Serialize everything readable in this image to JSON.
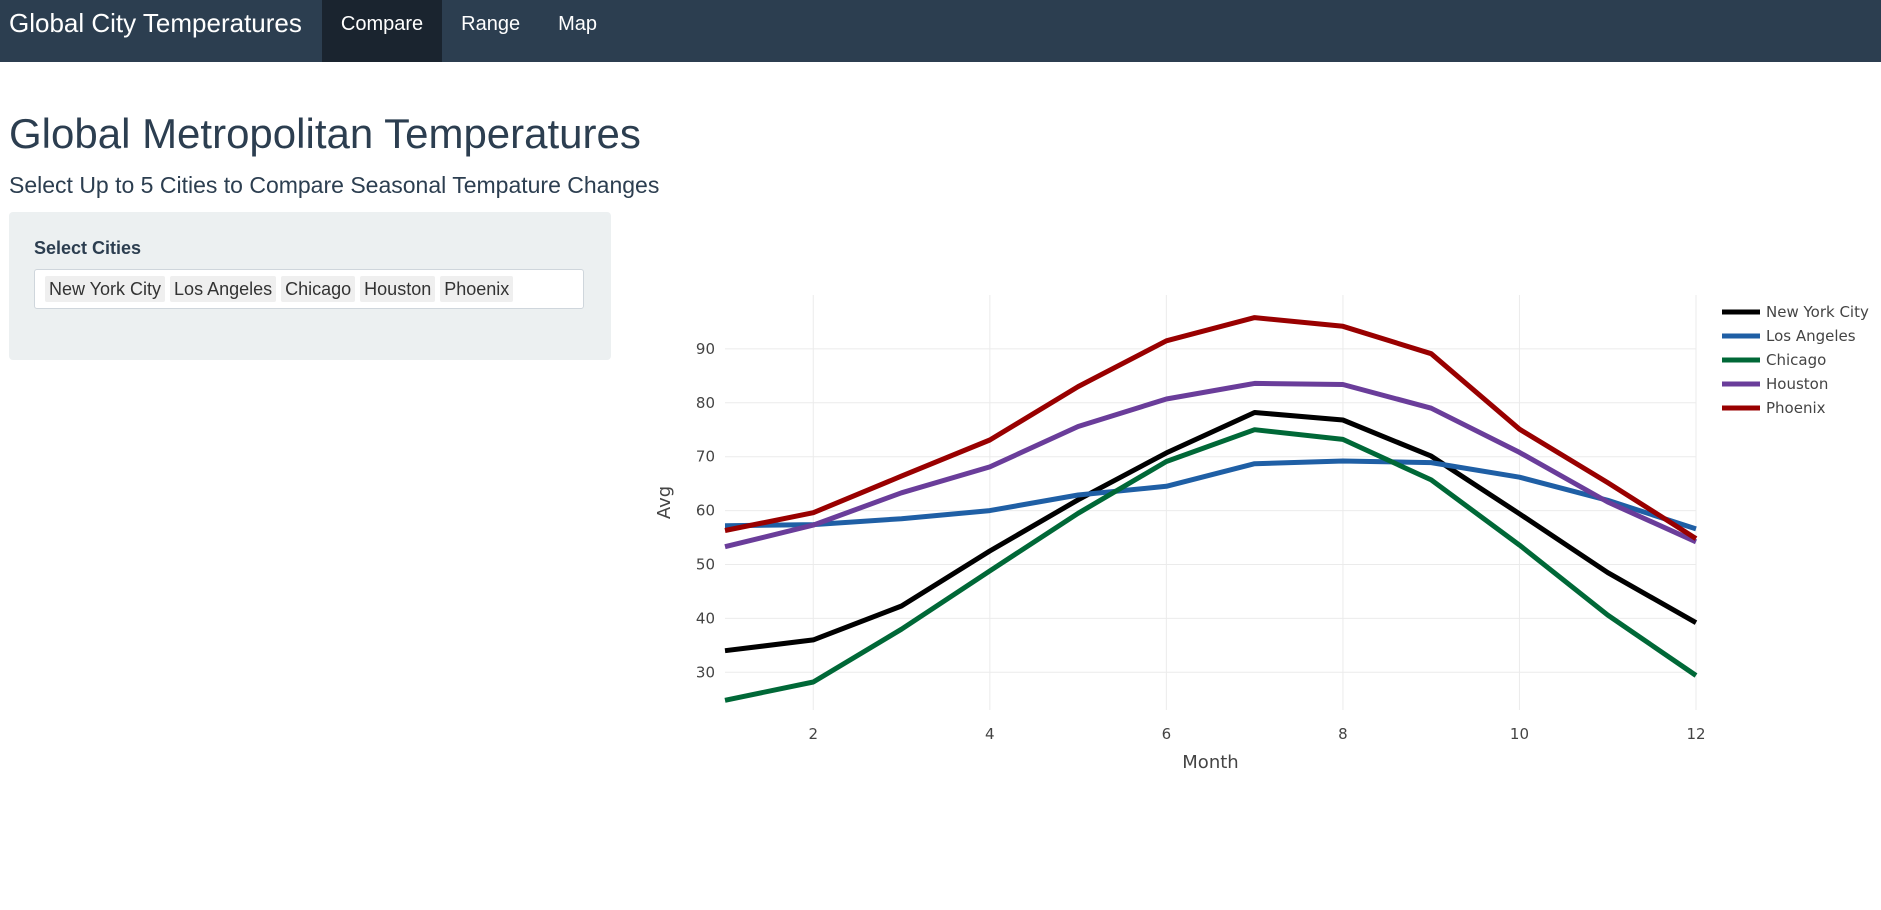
{
  "navbar": {
    "brand": "Global City Temperatures",
    "tabs": [
      {
        "label": "Compare",
        "active": true
      },
      {
        "label": "Range",
        "active": false
      },
      {
        "label": "Map",
        "active": false
      }
    ]
  },
  "page": {
    "title": "Global Metropolitan Temperatures",
    "subtitle": "Select Up to 5 Cities to Compare Seasonal Tempature Changes"
  },
  "sidebar": {
    "select_label": "Select Cities",
    "selected_cities": [
      "New York City",
      "Los Angeles",
      "Chicago",
      "Houston",
      "Phoenix"
    ]
  },
  "chart_data": {
    "type": "line",
    "xlabel": "Month",
    "ylabel": "Avg",
    "xlim": [
      1,
      12
    ],
    "ylim": [
      23,
      100
    ],
    "x_ticks": [
      2,
      4,
      6,
      8,
      10,
      12
    ],
    "y_ticks": [
      30,
      40,
      50,
      60,
      70,
      80,
      90
    ],
    "x": [
      1,
      2,
      3,
      4,
      5,
      6,
      7,
      8,
      9,
      10,
      11,
      12
    ],
    "legend_position": "top-right",
    "series": [
      {
        "name": "New York City",
        "color": "#000000",
        "values": [
          34,
          36,
          42.3,
          52.5,
          62,
          70.7,
          78.2,
          76.8,
          70.1,
          59.4,
          48.5,
          39.2
        ]
      },
      {
        "name": "Los Angeles",
        "color": "#1f5fa5",
        "values": [
          57.2,
          57.4,
          58.5,
          60,
          62.9,
          64.5,
          68.7,
          69.2,
          68.9,
          66.2,
          61.9,
          56.6
        ]
      },
      {
        "name": "Chicago",
        "color": "#006837",
        "values": [
          24.8,
          28.2,
          38,
          48.8,
          59.5,
          69.1,
          75,
          73.2,
          65.7,
          53.6,
          40.6,
          29.4
        ]
      },
      {
        "name": "Houston",
        "color": "#6a3d9a",
        "values": [
          53.3,
          57.3,
          63.3,
          68.1,
          75.6,
          80.7,
          83.6,
          83.4,
          79,
          70.8,
          61.6,
          54.2
        ]
      },
      {
        "name": "Phoenix",
        "color": "#990000",
        "values": [
          56.3,
          59.6,
          66.4,
          73.1,
          83,
          91.5,
          95.8,
          94.2,
          89.1,
          75.1,
          65.2,
          54.8
        ]
      }
    ]
  }
}
